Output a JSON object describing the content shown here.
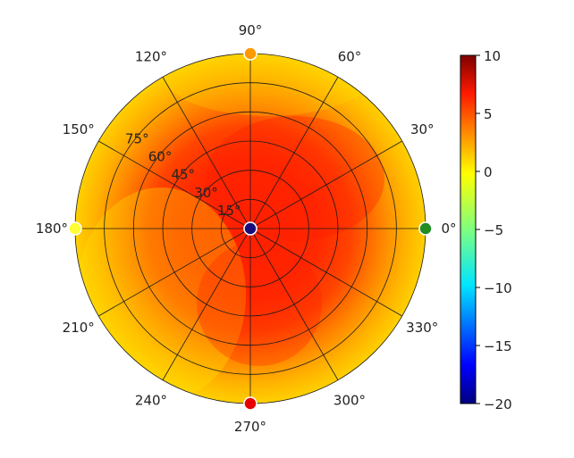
{
  "chart_data": {
    "type": "heatmap",
    "projection": "polar",
    "title": "",
    "angle_tick_labels": [
      "0°",
      "30°",
      "60°",
      "90°",
      "120°",
      "150°",
      "180°",
      "210°",
      "240°",
      "270°",
      "300°",
      "330°"
    ],
    "radial_tick_labels": [
      "15°",
      "30°",
      "45°",
      "60°",
      "75°"
    ],
    "radial_axis_values_deg": [
      15,
      30,
      45,
      60,
      75
    ],
    "radial_max_deg": 90,
    "colormap": "jet",
    "colorbar": {
      "min": -20,
      "max": 10,
      "tick_values": [
        10,
        5,
        0,
        -5,
        -10,
        -15,
        -20
      ],
      "tick_labels": [
        "10",
        "5",
        "0",
        "−5",
        "−10",
        "−15",
        "−20"
      ]
    },
    "markers": [
      {
        "name": "center",
        "angle_deg": 0,
        "theta_deg": 0,
        "value": -20,
        "color": "#1a0f7a"
      },
      {
        "name": "0deg",
        "angle_deg": 0,
        "theta_deg": 90,
        "value": -4,
        "color": "#228b22"
      },
      {
        "name": "90deg",
        "angle_deg": 90,
        "theta_deg": 90,
        "value": 3,
        "color": "#ff9900"
      },
      {
        "name": "180deg",
        "angle_deg": 180,
        "theta_deg": 90,
        "value": 0,
        "color": "#ffff33"
      },
      {
        "name": "270deg",
        "angle_deg": 270,
        "theta_deg": 90,
        "value": 8,
        "color": "#e60000"
      }
    ],
    "field_description_values": {
      "center_region_value": 7,
      "mid_value": 5,
      "edge_value": 2
    },
    "grid": true,
    "legend": "none"
  }
}
